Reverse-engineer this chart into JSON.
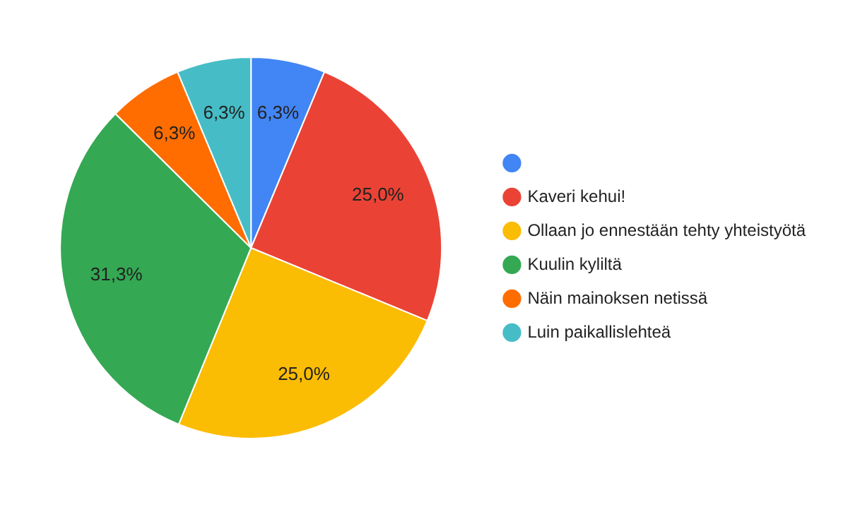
{
  "chart_data": {
    "type": "pie",
    "categories": [
      null,
      "Kaveri kehui!",
      "Ollaan jo ennestään tehty yhteistyötä",
      "Kuulin kyliltä",
      "Näin mainoksen netissä",
      "Luin paikallislehteä"
    ],
    "values": [
      6.3,
      25.0,
      25.0,
      31.3,
      6.3,
      6.3
    ],
    "value_labels": [
      "6,3%",
      "25,0%",
      "25,0%",
      "31,3%",
      "6,3%",
      "6,3%"
    ],
    "colors": [
      "#4285f4",
      "#ea4335",
      "#fbbc04",
      "#34a853",
      "#ff6d01",
      "#46bdc6"
    ],
    "legend": "right"
  }
}
